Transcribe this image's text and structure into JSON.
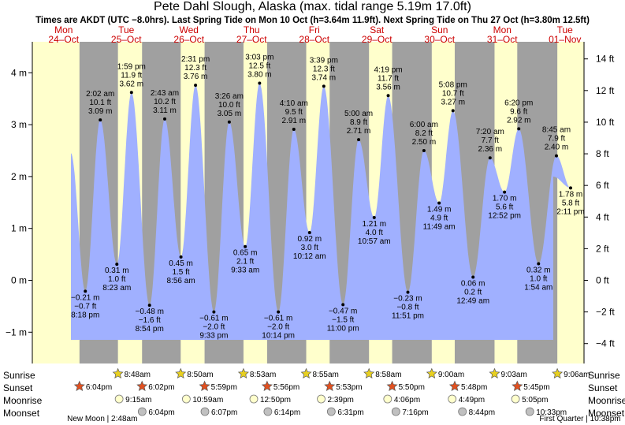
{
  "title": "Pete Dahl Slough, Alaska (max. tidal range 5.19m 17.0ft)",
  "subtitle": "Times are AKDT (UTC −8.0hrs). Last Spring Tide on Mon 10 Oct (h=3.64m 11.9ft). Next Spring Tide on Thu 27 Oct (h=3.80m 12.5ft)",
  "row_labels": {
    "sunrise": "Sunrise",
    "sunset": "Sunset",
    "moonrise": "Moonrise",
    "moonset": "Moonset"
  },
  "colors": {
    "night": "#a0a0a0",
    "day": "#ffffcc",
    "water": "#a0b0ff",
    "sun": "#e8d020",
    "sunset": "#e05020",
    "moon_rise": "#ffffcc",
    "moon_set": "#c0c0c0"
  },
  "chart_data": {
    "type": "area",
    "ylabel_left": "m",
    "ylabel_right": "ft",
    "ylim_m": [
      -1.55,
      4.7
    ],
    "y_ticks_m": [
      "−1 m",
      "0 m",
      "1 m",
      "2 m",
      "3 m",
      "4 m"
    ],
    "y_ticks_ft": [
      "−4 ft",
      "−2 ft",
      "0 ft",
      "2 ft",
      "4 ft",
      "6 ft",
      "8 ft",
      "10 ft",
      "12 ft",
      "14 ft"
    ],
    "days": [
      {
        "dow": "Mon",
        "date": "24–Oct"
      },
      {
        "dow": "Tue",
        "date": "25–Oct"
      },
      {
        "dow": "Wed",
        "date": "26–Oct"
      },
      {
        "dow": "Thu",
        "date": "27–Oct"
      },
      {
        "dow": "Fri",
        "date": "28–Oct"
      },
      {
        "dow": "Sat",
        "date": "29–Oct"
      },
      {
        "dow": "Sun",
        "date": "30–Oct"
      },
      {
        "dow": "Mon",
        "date": "31–Oct"
      },
      {
        "dow": "Tue",
        "date": "01–Nov"
      }
    ],
    "tides": [
      {
        "t": "2022-10-24 20:18",
        "m": -0.21,
        "lines": [
          "−0.21 m",
          "−0.7 ft",
          "8:18 pm"
        ]
      },
      {
        "t": "2022-10-25 02:02",
        "m": 3.09,
        "lines": [
          "2:02 am",
          "10.1 ft",
          "3.09 m"
        ]
      },
      {
        "t": "2022-10-25 08:23",
        "m": 0.31,
        "lines": [
          "0.31 m",
          "1.0 ft",
          "8:23 am"
        ]
      },
      {
        "t": "2022-10-25 13:59",
        "m": 3.62,
        "lines": [
          "1:59 pm",
          "11.9 ft",
          "3.62 m"
        ]
      },
      {
        "t": "2022-10-25 20:54",
        "m": -0.48,
        "lines": [
          "−0.48 m",
          "−1.6 ft",
          "8:54 pm"
        ]
      },
      {
        "t": "2022-10-26 02:43",
        "m": 3.11,
        "lines": [
          "2:43 am",
          "10.2 ft",
          "3.11 m"
        ]
      },
      {
        "t": "2022-10-26 08:56",
        "m": 0.45,
        "lines": [
          "0.45 m",
          "1.5 ft",
          "8:56 am"
        ]
      },
      {
        "t": "2022-10-26 14:31",
        "m": 3.76,
        "lines": [
          "2:31 pm",
          "12.3 ft",
          "3.76 m"
        ]
      },
      {
        "t": "2022-10-26 21:33",
        "m": -0.61,
        "lines": [
          "−0.61 m",
          "−2.0 ft",
          "9:33 pm"
        ]
      },
      {
        "t": "2022-10-27 03:26",
        "m": 3.05,
        "lines": [
          "3:26 am",
          "10.0 ft",
          "3.05 m"
        ]
      },
      {
        "t": "2022-10-27 09:33",
        "m": 0.65,
        "lines": [
          "0.65 m",
          "2.1 ft",
          "9:33 am"
        ]
      },
      {
        "t": "2022-10-27 15:03",
        "m": 3.8,
        "lines": [
          "3:03 pm",
          "12.5 ft",
          "3.80 m"
        ]
      },
      {
        "t": "2022-10-27 22:14",
        "m": -0.61,
        "lines": [
          "−0.61 m",
          "−2.0 ft",
          "10:14 pm"
        ]
      },
      {
        "t": "2022-10-28 04:10",
        "m": 2.91,
        "lines": [
          "4:10 am",
          "9.5 ft",
          "2.91 m"
        ]
      },
      {
        "t": "2022-10-28 10:12",
        "m": 0.92,
        "lines": [
          "0.92 m",
          "3.0 ft",
          "10:12 am"
        ]
      },
      {
        "t": "2022-10-28 15:39",
        "m": 3.74,
        "lines": [
          "3:39 pm",
          "12.3 ft",
          "3.74 m"
        ]
      },
      {
        "t": "2022-10-28 23:00",
        "m": -0.47,
        "lines": [
          "−0.47 m",
          "−1.5 ft",
          "11:00 pm"
        ]
      },
      {
        "t": "2022-10-29 05:00",
        "m": 2.71,
        "lines": [
          "5:00 am",
          "8.9 ft",
          "2.71 m"
        ]
      },
      {
        "t": "2022-10-29 10:57",
        "m": 1.21,
        "lines": [
          "1.21 m",
          "4.0 ft",
          "10:57 am"
        ]
      },
      {
        "t": "2022-10-29 16:19",
        "m": 3.56,
        "lines": [
          "4:19 pm",
          "11.7 ft",
          "3.56 m"
        ]
      },
      {
        "t": "2022-10-29 23:51",
        "m": -0.23,
        "lines": [
          "−0.23 m",
          "−0.8 ft",
          "11:51 pm"
        ]
      },
      {
        "t": "2022-10-30 06:00",
        "m": 2.5,
        "lines": [
          "6:00 am",
          "8.2 ft",
          "2.50 m"
        ]
      },
      {
        "t": "2022-10-30 11:49",
        "m": 1.49,
        "lines": [
          "1.49 m",
          "4.9 ft",
          "11:49 am"
        ]
      },
      {
        "t": "2022-10-30 17:08",
        "m": 3.27,
        "lines": [
          "5:08 pm",
          "10.7 ft",
          "3.27 m"
        ]
      },
      {
        "t": "2022-10-31 00:49",
        "m": 0.06,
        "lines": [
          "0.06 m",
          "0.2 ft",
          "12:49 am"
        ]
      },
      {
        "t": "2022-10-31 07:20",
        "m": 2.36,
        "lines": [
          "7:20 am",
          "7.7 ft",
          "2.36 m"
        ]
      },
      {
        "t": "2022-10-31 12:52",
        "m": 1.7,
        "lines": [
          "1.70 m",
          "5.6 ft",
          "12:52 pm"
        ]
      },
      {
        "t": "2022-10-31 18:20",
        "m": 2.92,
        "lines": [
          "6:20 pm",
          "9.6 ft",
          "2.92 m"
        ]
      },
      {
        "t": "2022-11-01 01:54",
        "m": 0.32,
        "lines": [
          "0.32 m",
          "1.0 ft",
          "1:54 am"
        ]
      },
      {
        "t": "2022-11-01 08:45",
        "m": 2.4,
        "lines": [
          "8:45 am",
          "7.9 ft",
          "2.40 m"
        ]
      },
      {
        "t": "2022-11-01 14:11",
        "m": 1.78,
        "lines": [
          "1.78 m",
          "5.8 ft",
          "2:11 pm"
        ]
      }
    ],
    "astro": {
      "sunrise": [
        {
          "t": "2022-10-25 08:48",
          "label": "8:48am"
        },
        {
          "t": "2022-10-26 08:50",
          "label": "8:50am"
        },
        {
          "t": "2022-10-27 08:53",
          "label": "8:53am"
        },
        {
          "t": "2022-10-28 08:55",
          "label": "8:55am"
        },
        {
          "t": "2022-10-29 08:58",
          "label": "8:58am"
        },
        {
          "t": "2022-10-30 09:00",
          "label": "9:00am"
        },
        {
          "t": "2022-10-31 09:03",
          "label": "9:03am"
        },
        {
          "t": "2022-11-01 09:06",
          "label": "9:06am"
        }
      ],
      "sunset": [
        {
          "t": "2022-10-24 18:04",
          "label": "6:04pm"
        },
        {
          "t": "2022-10-25 18:02",
          "label": "6:02pm"
        },
        {
          "t": "2022-10-26 17:59",
          "label": "5:59pm"
        },
        {
          "t": "2022-10-27 17:56",
          "label": "5:56pm"
        },
        {
          "t": "2022-10-28 17:53",
          "label": "5:53pm"
        },
        {
          "t": "2022-10-29 17:50",
          "label": "5:50pm"
        },
        {
          "t": "2022-10-30 17:48",
          "label": "5:48pm"
        },
        {
          "t": "2022-10-31 17:45",
          "label": "5:45pm"
        }
      ],
      "moonrise": [
        {
          "t": "2022-10-25 09:15",
          "label": "9:15am"
        },
        {
          "t": "2022-10-26 10:59",
          "label": "10:59am"
        },
        {
          "t": "2022-10-27 12:50",
          "label": "12:50pm"
        },
        {
          "t": "2022-10-28 14:39",
          "label": "2:39pm"
        },
        {
          "t": "2022-10-29 16:06",
          "label": "4:06pm"
        },
        {
          "t": "2022-10-30 16:49",
          "label": "4:49pm"
        },
        {
          "t": "2022-10-31 17:05",
          "label": "5:05pm"
        }
      ],
      "moonset": [
        {
          "t": "2022-10-25 18:04",
          "label": "6:04pm"
        },
        {
          "t": "2022-10-26 18:07",
          "label": "6:07pm"
        },
        {
          "t": "2022-10-27 18:14",
          "label": "6:14pm"
        },
        {
          "t": "2022-10-28 18:31",
          "label": "6:31pm"
        },
        {
          "t": "2022-10-29 19:16",
          "label": "7:16pm"
        },
        {
          "t": "2022-10-30 20:44",
          "label": "8:44pm"
        },
        {
          "t": "2022-10-31 22:33",
          "label": "10:33pm"
        }
      ]
    },
    "moon_phases": [
      {
        "t": "2022-10-25 02:48",
        "label": "New Moon | 2:48am"
      },
      {
        "t": "2022-11-01 22:38",
        "label": "First Quarter | 10:38pm"
      }
    ]
  }
}
